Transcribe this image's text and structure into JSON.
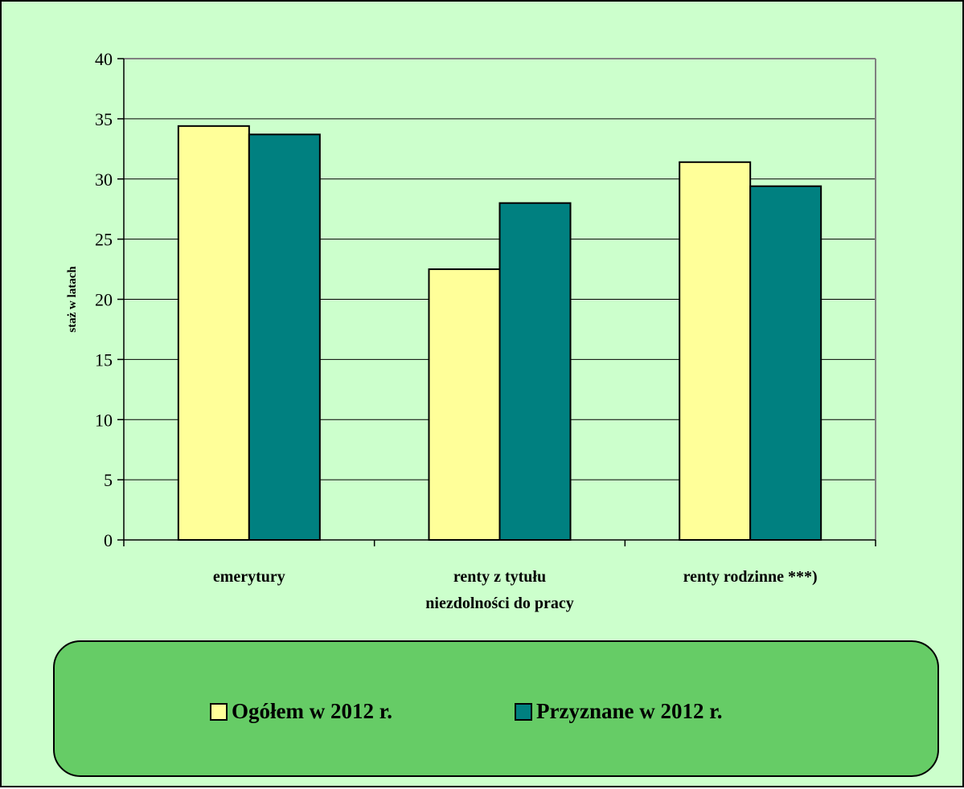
{
  "colors": {
    "background": "#ccffcc",
    "legend_background": "#66cc66",
    "series_ogolem": "#ffff99",
    "series_przyznane": "#008080"
  },
  "chart_data": {
    "type": "bar",
    "title": "",
    "xlabel": "",
    "ylabel": "staż w latach",
    "ylim": [
      0,
      40
    ],
    "yticks": [
      0,
      5,
      10,
      15,
      20,
      25,
      30,
      35,
      40
    ],
    "ytick_labels": [
      "0",
      "5",
      "10",
      "15",
      "20",
      "25",
      "30",
      "35",
      "40"
    ],
    "grid": true,
    "legend_position": "bottom",
    "categories": [
      [
        "emerytury"
      ],
      [
        "renty z tytułu",
        "niezdolności do pracy"
      ],
      [
        "renty rodzinne ***)"
      ]
    ],
    "series": [
      {
        "name": "Ogółem w 2012 r.",
        "color": "#ffff99",
        "values": [
          34.4,
          22.5,
          31.4
        ]
      },
      {
        "name": "Przyznane w 2012 r.",
        "color": "#008080",
        "values": [
          33.7,
          28.0,
          29.4
        ]
      }
    ]
  }
}
